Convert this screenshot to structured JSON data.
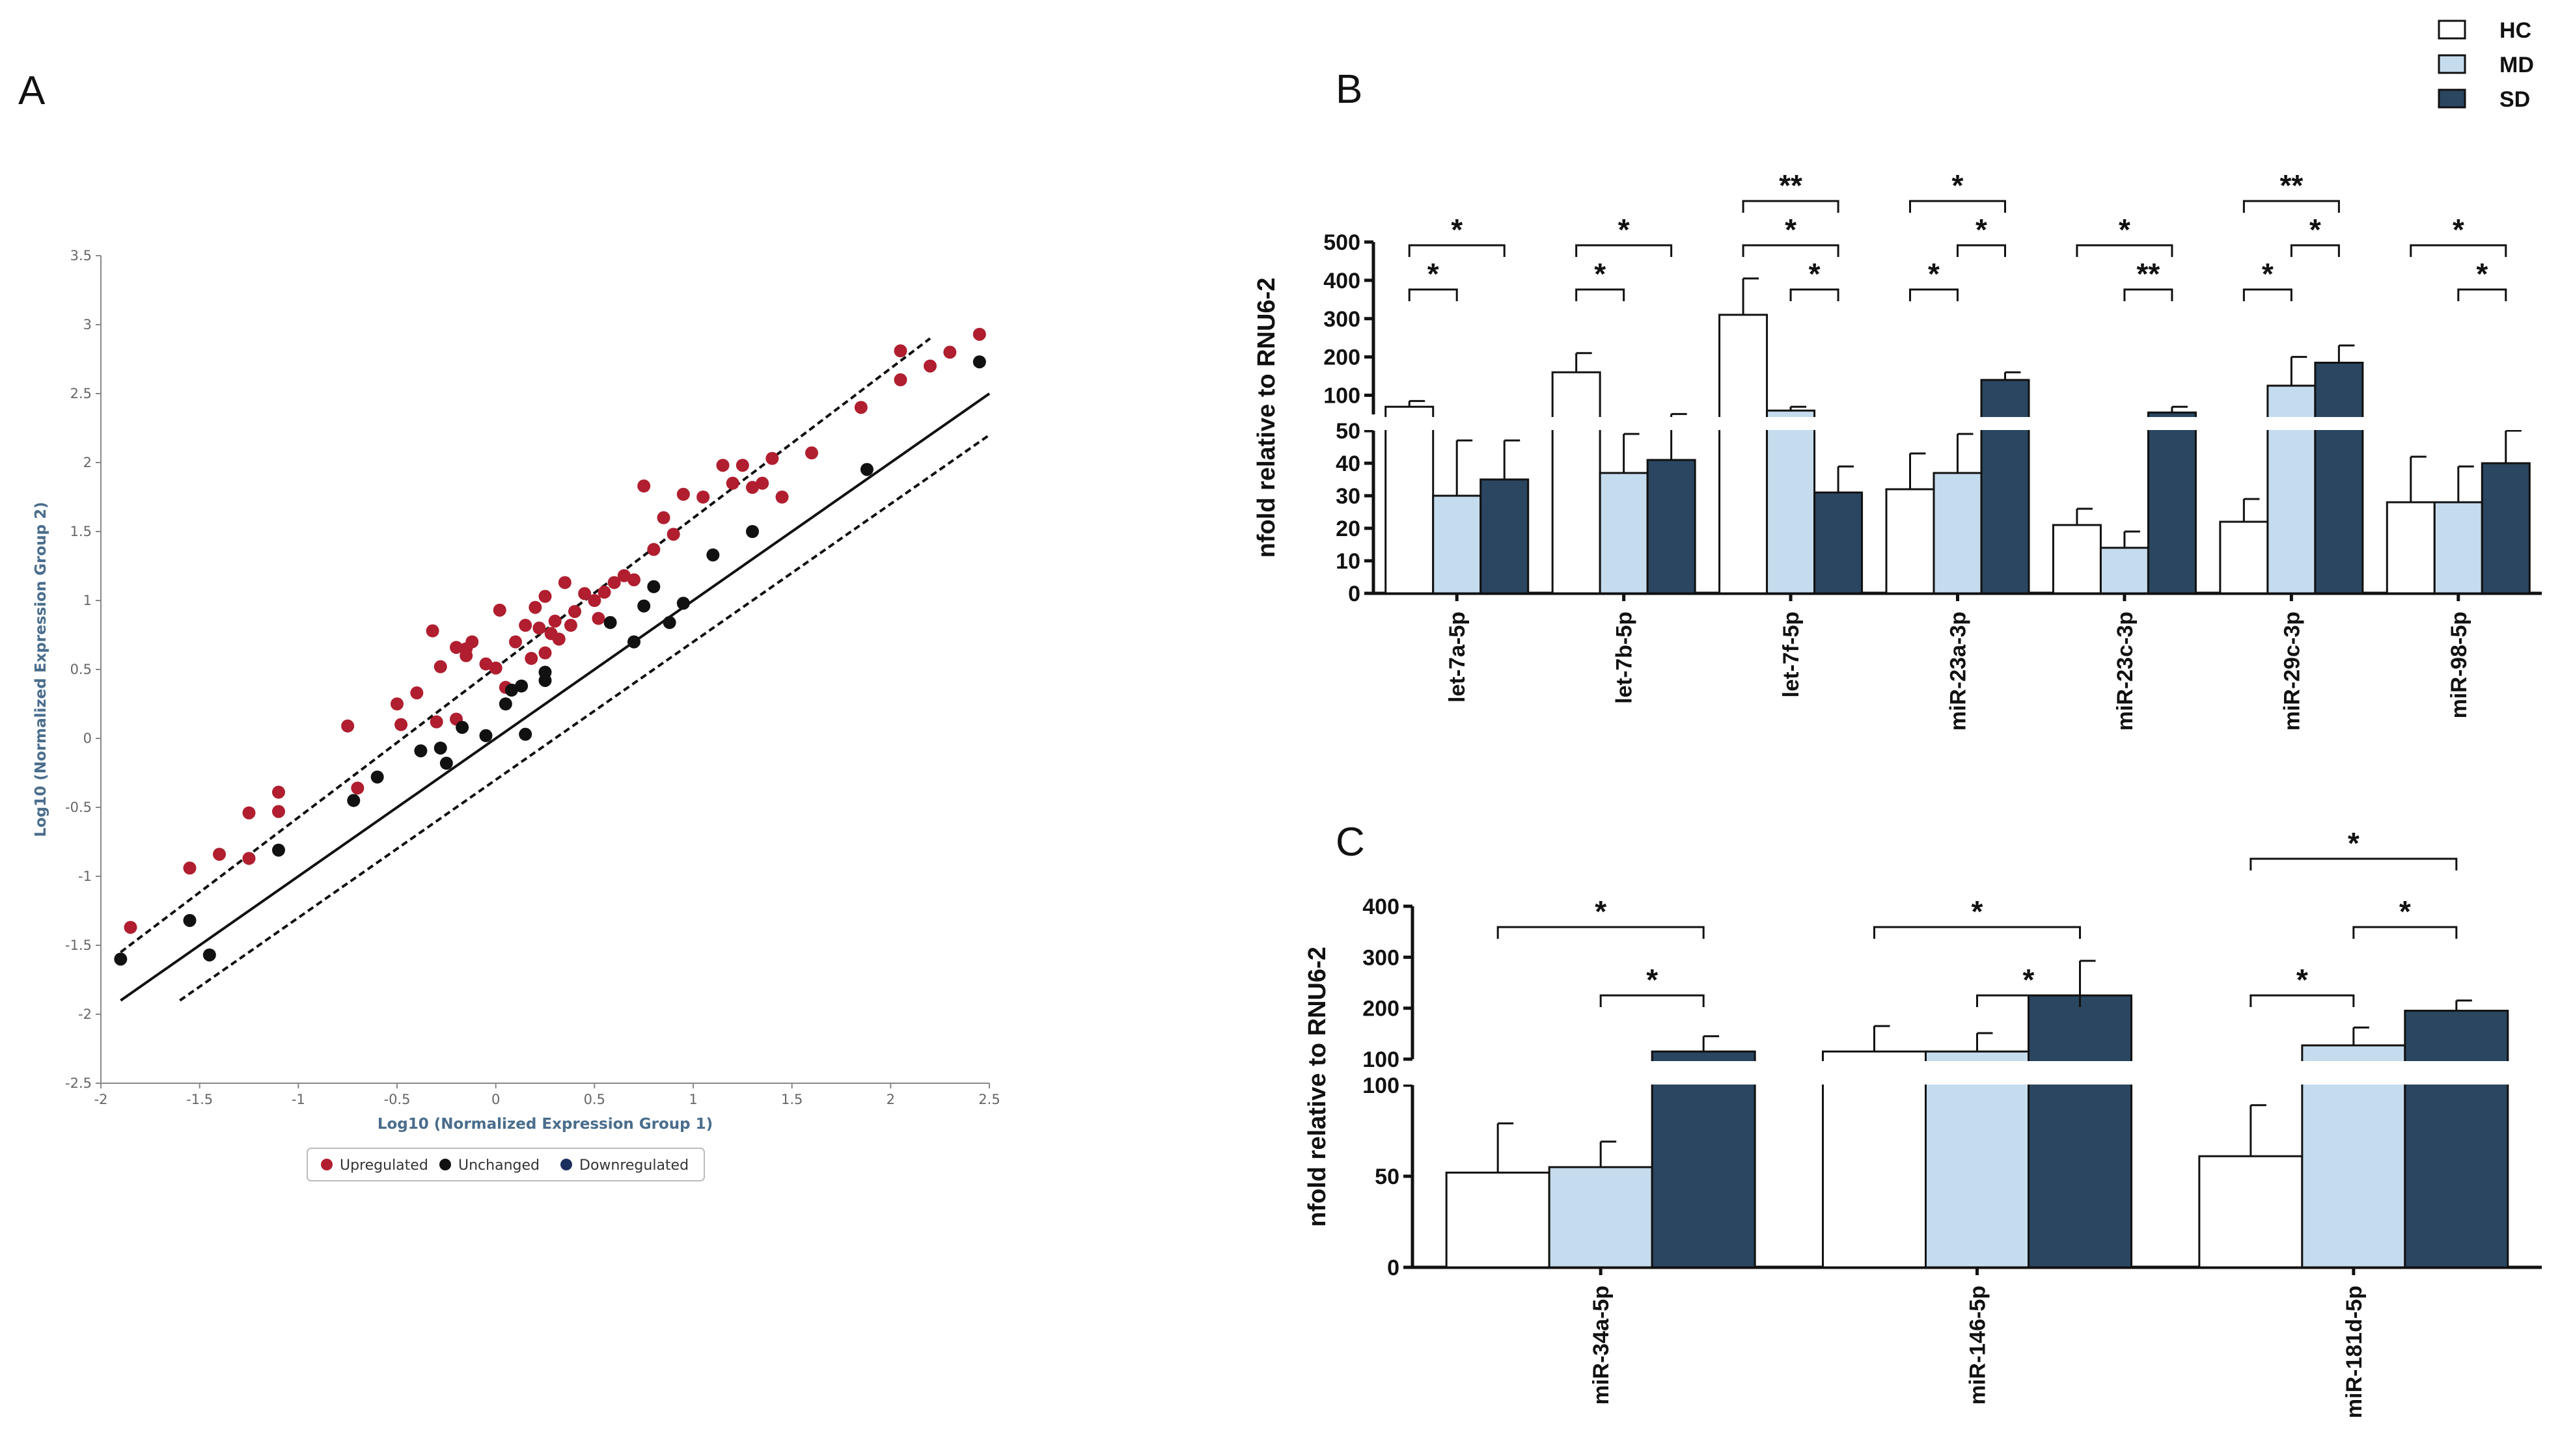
{
  "panels": {
    "a": "A",
    "b": "B",
    "c": "C"
  },
  "colors": {
    "HC": "#ffffff",
    "MD": "#c5dcee",
    "SD": "#2a4660",
    "up": "#b01e2f",
    "unchanged": "#111111",
    "down": "#1b2f5e"
  },
  "top_legend": [
    {
      "name": "HC",
      "color": "#ffffff"
    },
    {
      "name": "MD",
      "color": "#c5dcee"
    },
    {
      "name": "SD",
      "color": "#2a4660"
    }
  ],
  "chart_data": [
    {
      "id": "A",
      "type": "scatter",
      "title": "",
      "xlabel": "Log10 (Normalized Expression Group 1)",
      "ylabel": "Log10 (Normalized Expression Group 2)",
      "xlim": [
        -2,
        2.5
      ],
      "ylim": [
        -2.5,
        3.5
      ],
      "xticks": [
        "-2",
        "-1.5",
        "-1",
        "-0.5",
        "0",
        "0.5",
        "1",
        "1.5",
        "2",
        "2.5"
      ],
      "yticks": [
        "-2.5",
        "-2",
        "-1.5",
        "-1",
        "-0.5",
        "0",
        "0.5",
        "1",
        "1.5",
        "2",
        "2.5",
        "3",
        "3.5"
      ],
      "legend": [
        "Upregulated",
        "Unchanged",
        "Downregulated"
      ],
      "legend_position": "bottom",
      "lines": [
        {
          "name": "identity",
          "style": "solid",
          "from": [
            -1.9,
            -1.9
          ],
          "to": [
            2.5,
            2.5
          ]
        },
        {
          "name": "upper threshold",
          "style": "dashed",
          "from": [
            -1.9,
            -1.55
          ],
          "to": [
            2.2,
            2.9
          ]
        },
        {
          "name": "lower threshold",
          "style": "dashed",
          "from": [
            -1.6,
            -1.9
          ],
          "to": [
            2.5,
            2.2
          ]
        }
      ],
      "series": [
        {
          "name": "Upregulated",
          "points": [
            [
              -1.85,
              -1.37
            ],
            [
              -1.55,
              -0.94
            ],
            [
              -1.4,
              -0.84
            ],
            [
              -1.25,
              -0.87
            ],
            [
              -1.25,
              -0.54
            ],
            [
              -1.1,
              -0.53
            ],
            [
              -1.1,
              -0.39
            ],
            [
              -0.75,
              0.09
            ],
            [
              -0.7,
              -0.36
            ],
            [
              -0.5,
              0.25
            ],
            [
              -0.48,
              0.1
            ],
            [
              -0.4,
              0.33
            ],
            [
              -0.32,
              0.78
            ],
            [
              -0.3,
              0.12
            ],
            [
              -0.28,
              0.52
            ],
            [
              -0.2,
              0.66
            ],
            [
              -0.2,
              0.14
            ],
            [
              -0.15,
              0.65
            ],
            [
              -0.15,
              0.6
            ],
            [
              -0.12,
              0.7
            ],
            [
              -0.05,
              0.54
            ],
            [
              0,
              0.51
            ],
            [
              0.02,
              0.93
            ],
            [
              0.05,
              0.37
            ],
            [
              0.1,
              0.7
            ],
            [
              0.15,
              0.82
            ],
            [
              0.18,
              0.58
            ],
            [
              0.2,
              0.95
            ],
            [
              0.22,
              0.8
            ],
            [
              0.25,
              1.03
            ],
            [
              0.25,
              0.62
            ],
            [
              0.28,
              0.76
            ],
            [
              0.3,
              0.85
            ],
            [
              0.32,
              0.72
            ],
            [
              0.35,
              1.13
            ],
            [
              0.38,
              0.82
            ],
            [
              0.4,
              0.92
            ],
            [
              0.45,
              1.05
            ],
            [
              0.5,
              1.0
            ],
            [
              0.52,
              0.87
            ],
            [
              0.55,
              1.06
            ],
            [
              0.6,
              1.13
            ],
            [
              0.65,
              1.18
            ],
            [
              0.7,
              1.15
            ],
            [
              0.75,
              1.83
            ],
            [
              0.8,
              1.37
            ],
            [
              0.85,
              1.6
            ],
            [
              0.9,
              1.48
            ],
            [
              0.95,
              1.77
            ],
            [
              1.05,
              1.75
            ],
            [
              1.15,
              1.98
            ],
            [
              1.2,
              1.85
            ],
            [
              1.25,
              1.98
            ],
            [
              1.3,
              1.82
            ],
            [
              1.35,
              1.85
            ],
            [
              1.4,
              2.03
            ],
            [
              1.45,
              1.75
            ],
            [
              1.6,
              2.07
            ],
            [
              1.85,
              2.4
            ],
            [
              2.05,
              2.81
            ],
            [
              2.05,
              2.6
            ],
            [
              2.2,
              2.7
            ],
            [
              2.3,
              2.8
            ],
            [
              2.45,
              2.93
            ]
          ]
        },
        {
          "name": "Unchanged",
          "points": [
            [
              -1.9,
              -1.6
            ],
            [
              -1.55,
              -1.32
            ],
            [
              -1.45,
              -1.57
            ],
            [
              -1.1,
              -0.81
            ],
            [
              -0.72,
              -0.45
            ],
            [
              -0.6,
              -0.28
            ],
            [
              -0.38,
              -0.09
            ],
            [
              -0.28,
              -0.07
            ],
            [
              -0.25,
              -0.18
            ],
            [
              -0.17,
              0.08
            ],
            [
              -0.05,
              0.02
            ],
            [
              0.05,
              0.25
            ],
            [
              0.08,
              0.35
            ],
            [
              0.13,
              0.38
            ],
            [
              0.15,
              0.03
            ],
            [
              0.25,
              0.48
            ],
            [
              0.25,
              0.42
            ],
            [
              0.58,
              0.84
            ],
            [
              0.7,
              0.7
            ],
            [
              0.75,
              0.96
            ],
            [
              0.8,
              1.1
            ],
            [
              0.88,
              0.84
            ],
            [
              0.95,
              0.98
            ],
            [
              1.1,
              1.33
            ],
            [
              1.3,
              1.5
            ],
            [
              1.88,
              1.95
            ],
            [
              2.45,
              2.73
            ]
          ]
        },
        {
          "name": "Downregulated",
          "points": []
        }
      ]
    },
    {
      "id": "B",
      "type": "bar",
      "title": "",
      "ylabel": "nfold relative to RNU6-2",
      "xlabel": "",
      "groups": [
        "HC",
        "MD",
        "SD"
      ],
      "categories": [
        "let-7a-5p",
        "let-7b-5p",
        "let-7f-5p",
        "miR-23a-3p",
        "miR-23c-3p",
        "miR-29c-3p",
        "miR-98-5p"
      ],
      "ylim_lower": [
        0,
        50
      ],
      "ylim_upper": [
        50,
        500
      ],
      "yticks_lower": [
        "0",
        "10",
        "20",
        "30",
        "40",
        "50"
      ],
      "yticks_upper": [
        "100",
        "200",
        "300",
        "400",
        "500"
      ],
      "series": [
        {
          "name": "HC",
          "values": [
            70,
            160,
            310,
            32,
            21,
            22,
            28
          ],
          "errors": [
            15,
            50,
            95,
            11,
            5,
            7,
            14
          ]
        },
        {
          "name": "MD",
          "values": [
            30,
            37,
            60,
            37,
            14,
            125,
            28
          ],
          "errors": [
            17,
            12,
            10,
            12,
            5,
            75,
            11
          ]
        },
        {
          "name": "SD",
          "values": [
            35,
            41,
            31,
            140,
            55,
            185,
            40
          ],
          "errors": [
            12,
            10,
            8,
            20,
            15,
            45,
            10
          ]
        }
      ],
      "significance": [
        {
          "cat": 0,
          "from": "HC",
          "to": "MD",
          "label": "*",
          "level": 1
        },
        {
          "cat": 0,
          "from": "HC",
          "to": "SD",
          "label": "*",
          "level": 2
        },
        {
          "cat": 1,
          "from": "HC",
          "to": "MD",
          "label": "*",
          "level": 1
        },
        {
          "cat": 1,
          "from": "HC",
          "to": "SD",
          "label": "*",
          "level": 2
        },
        {
          "cat": 2,
          "from": "MD",
          "to": "SD",
          "label": "*",
          "level": 1
        },
        {
          "cat": 2,
          "from": "HC",
          "to": "SD",
          "label": "*",
          "level": 2
        },
        {
          "cat": 2,
          "from": "HC",
          "to": "SD",
          "label": "**",
          "level": 3
        },
        {
          "cat": 3,
          "from": "HC",
          "to": "MD",
          "label": "*",
          "level": 1
        },
        {
          "cat": 3,
          "from": "MD",
          "to": "SD",
          "label": "*",
          "level": 2
        },
        {
          "cat": 3,
          "from": "HC",
          "to": "SD",
          "label": "*",
          "level": 3
        },
        {
          "cat": 4,
          "from": "MD",
          "to": "SD",
          "label": "**",
          "level": 1
        },
        {
          "cat": 4,
          "from": "HC",
          "to": "SD",
          "label": "*",
          "level": 2
        },
        {
          "cat": 5,
          "from": "HC",
          "to": "MD",
          "label": "*",
          "level": 1
        },
        {
          "cat": 5,
          "from": "MD",
          "to": "SD",
          "label": "*",
          "level": 2
        },
        {
          "cat": 5,
          "from": "HC",
          "to": "SD",
          "label": "**",
          "level": 3
        },
        {
          "cat": 6,
          "from": "MD",
          "to": "SD",
          "label": "*",
          "level": 1
        },
        {
          "cat": 6,
          "from": "HC",
          "to": "SD",
          "label": "*",
          "level": 2
        }
      ]
    },
    {
      "id": "C",
      "type": "bar",
      "title": "",
      "ylabel": "nfold relative to RNU6-2",
      "xlabel": "",
      "groups": [
        "HC",
        "MD",
        "SD"
      ],
      "categories": [
        "miR-34a-5p",
        "miR-146-5p",
        "miR-181d-5p"
      ],
      "ylim_lower": [
        0,
        100
      ],
      "ylim_upper": [
        100,
        400
      ],
      "yticks_lower": [
        "0",
        "50",
        "100"
      ],
      "yticks_upper": [
        "100",
        "200",
        "300",
        "400"
      ],
      "series": [
        {
          "name": "HC",
          "values": [
            52,
            115,
            61
          ],
          "errors": [
            27,
            50,
            28
          ]
        },
        {
          "name": "MD",
          "values": [
            55,
            115,
            127
          ],
          "errors": [
            14,
            36,
            35
          ]
        },
        {
          "name": "SD",
          "values": [
            115,
            225,
            195
          ],
          "errors": [
            30,
            68,
            20
          ]
        }
      ],
      "significance": [
        {
          "cat": 0,
          "from": "MD",
          "to": "SD",
          "label": "*",
          "level": 1
        },
        {
          "cat": 0,
          "from": "HC",
          "to": "SD",
          "label": "*",
          "level": 2
        },
        {
          "cat": 1,
          "from": "MD",
          "to": "SD",
          "label": "*",
          "level": 1
        },
        {
          "cat": 1,
          "from": "HC",
          "to": "SD",
          "label": "*",
          "level": 2
        },
        {
          "cat": 2,
          "from": "HC",
          "to": "MD",
          "label": "*",
          "level": 1
        },
        {
          "cat": 2,
          "from": "MD",
          "to": "SD",
          "label": "*",
          "level": 2
        },
        {
          "cat": 2,
          "from": "HC",
          "to": "SD",
          "label": "*",
          "level": 3
        }
      ]
    }
  ]
}
